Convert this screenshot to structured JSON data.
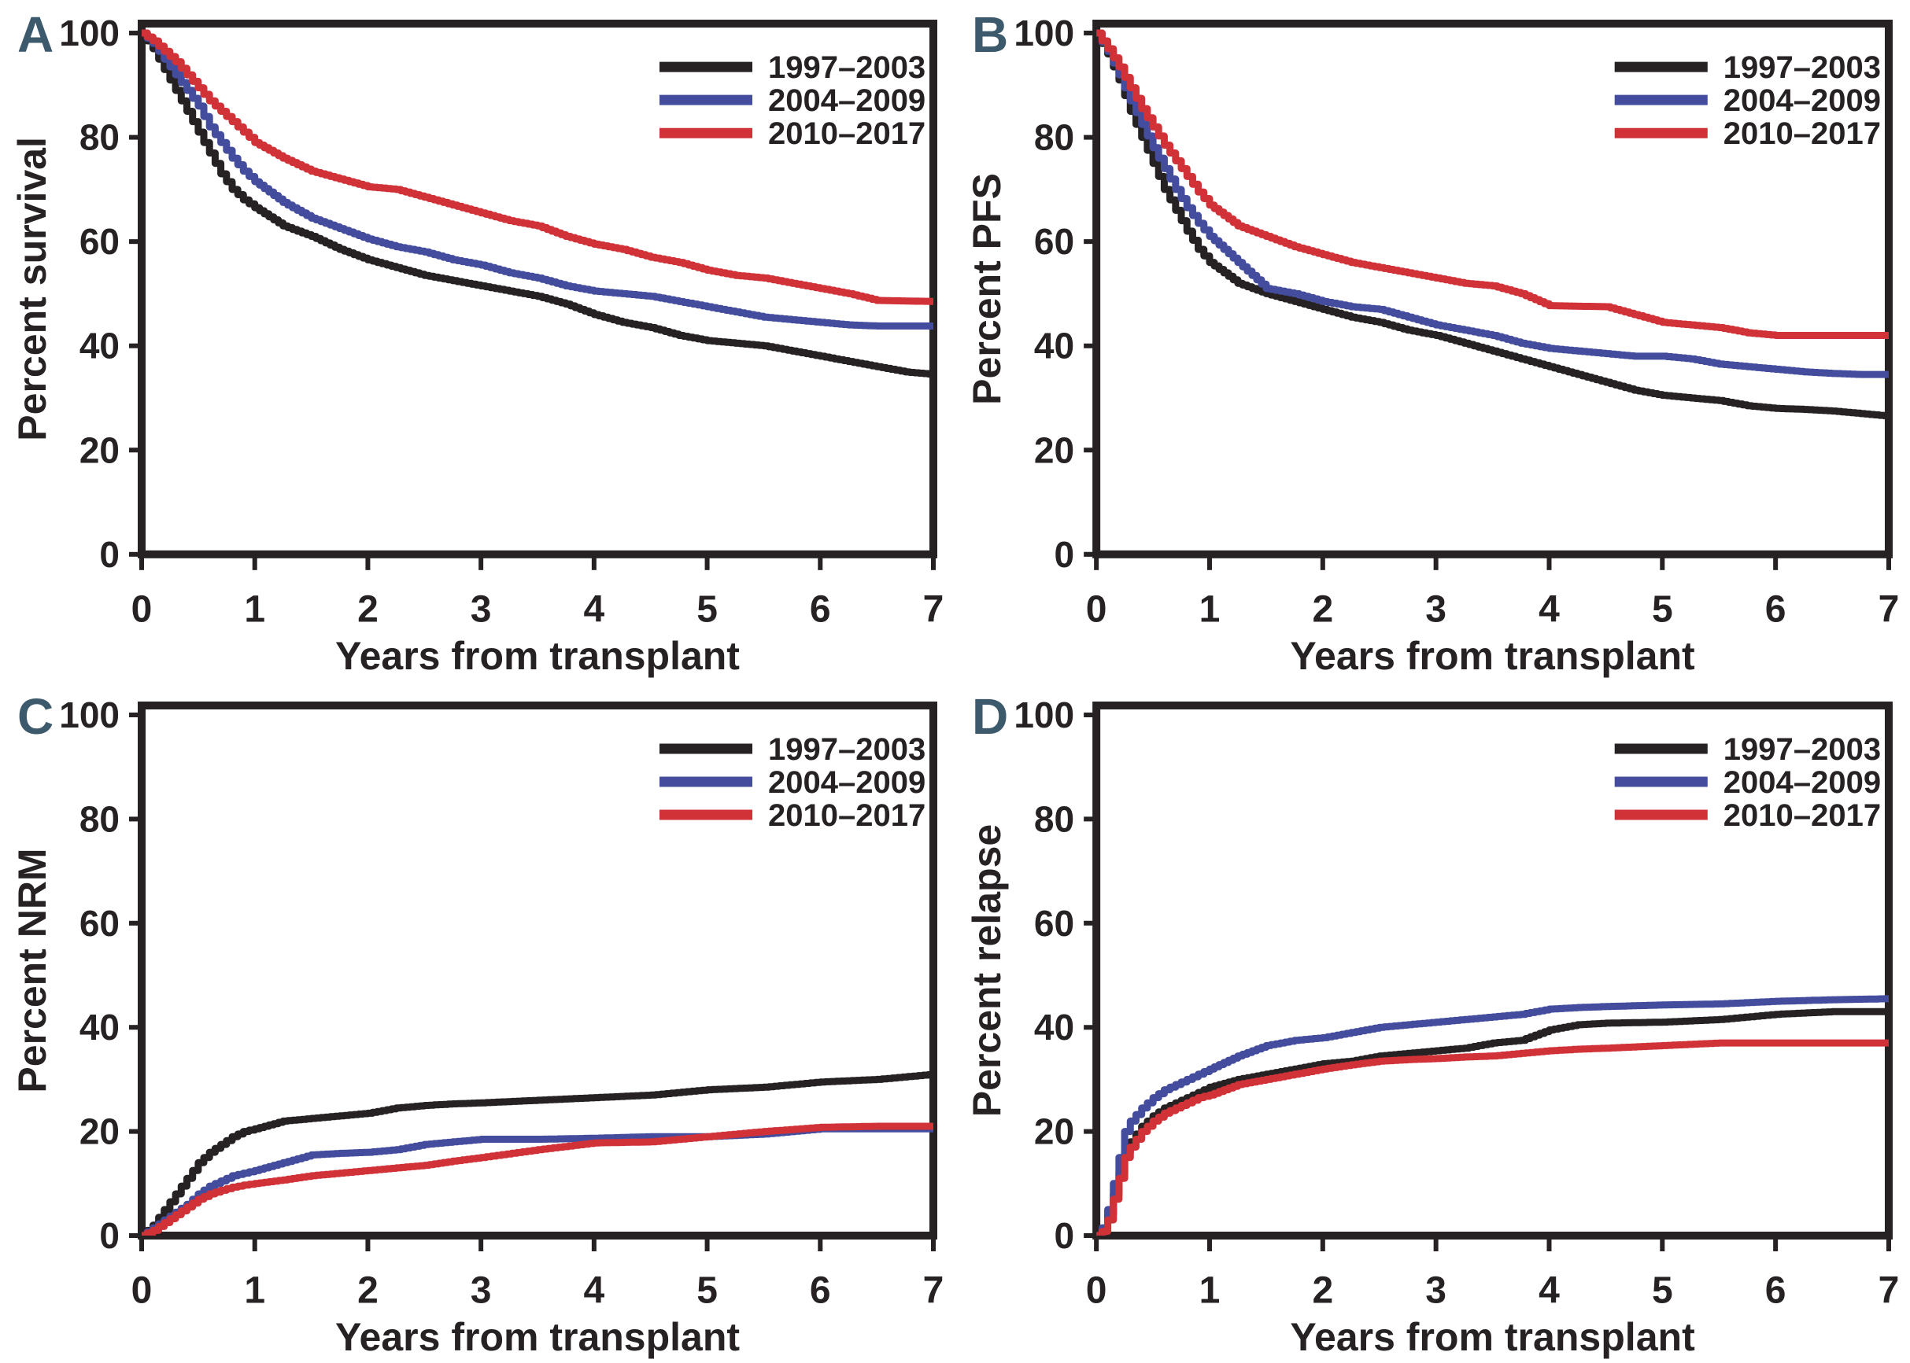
{
  "figure": {
    "background": "#ffffff",
    "axis_color": "#262223",
    "panel_letter_color": "#3d5a6c",
    "x_label": "Years from transplant",
    "x_ticks": [
      0,
      1,
      2,
      3,
      4,
      5,
      6,
      7
    ],
    "y_ticks": [
      0,
      20,
      40,
      60,
      80,
      100
    ],
    "xlim": [
      0,
      7
    ],
    "ylim": [
      0,
      100
    ],
    "grid": "off",
    "legend_position": "top-right",
    "legend_labels": [
      "1997–2003",
      "2004–2009",
      "2010–2017"
    ],
    "series_colors": {
      "black": "#262223",
      "blue": "#434c9d",
      "red": "#d03238"
    }
  },
  "chart_data": [
    {
      "panel": "A",
      "type": "line",
      "title": "",
      "ylabel": "Percent survival",
      "xlabel": "Years from transplant",
      "xlim": [
        0,
        7
      ],
      "ylim": [
        0,
        100
      ],
      "legend_position": "top-right",
      "x": [
        0,
        0.1,
        0.2,
        0.3,
        0.4,
        0.5,
        0.6,
        0.7,
        0.8,
        0.9,
        1,
        1.25,
        1.5,
        1.75,
        2,
        2.25,
        2.5,
        2.75,
        3,
        3.25,
        3.5,
        3.75,
        4,
        4.25,
        4.5,
        4.75,
        5,
        5.25,
        5.5,
        5.75,
        6,
        6.25,
        6.5,
        6.75,
        7
      ],
      "series": [
        {
          "name": "1997–2003",
          "color": "#262223",
          "y": [
            100,
            97,
            93,
            89,
            85,
            81,
            77,
            73,
            70,
            68,
            66.5,
            63,
            61,
            58.5,
            56.5,
            55,
            53.5,
            52.5,
            51.5,
            50.5,
            49.5,
            48,
            46,
            44.5,
            43.5,
            42,
            41,
            40.5,
            40,
            39,
            38,
            37,
            36,
            35,
            34.5
          ]
        },
        {
          "name": "2004–2009",
          "color": "#434c9d",
          "y": [
            100,
            98,
            95,
            92,
            89,
            86,
            82,
            79,
            76,
            73.5,
            71.5,
            67.5,
            64.5,
            62.5,
            60.5,
            59,
            58,
            56.5,
            55.5,
            54,
            53,
            51.5,
            50.5,
            50,
            49.5,
            48.5,
            47.5,
            46.5,
            45.5,
            45,
            44.5,
            44,
            43.8,
            43.8,
            43.8
          ]
        },
        {
          "name": "2010–2017",
          "color": "#d03238",
          "y": [
            100,
            98.5,
            96.5,
            94.5,
            92,
            89.5,
            87,
            85,
            83,
            81,
            79,
            76,
            73.5,
            72,
            70.5,
            70,
            68.5,
            67,
            65.5,
            64,
            63,
            61,
            59.5,
            58.5,
            57,
            56,
            54.5,
            53.5,
            53,
            52,
            51,
            50,
            48.7,
            48.6,
            48.5
          ]
        }
      ]
    },
    {
      "panel": "B",
      "type": "line",
      "title": "",
      "ylabel": "Percent PFS",
      "xlabel": "Years from transplant",
      "xlim": [
        0,
        7
      ],
      "ylim": [
        0,
        100
      ],
      "legend_position": "top-right",
      "x": [
        0,
        0.1,
        0.2,
        0.3,
        0.4,
        0.5,
        0.6,
        0.7,
        0.8,
        0.9,
        1,
        1.25,
        1.5,
        1.75,
        2,
        2.25,
        2.5,
        2.75,
        3,
        3.25,
        3.5,
        3.75,
        4,
        4.25,
        4.5,
        4.75,
        5,
        5.25,
        5.5,
        5.75,
        6,
        6.25,
        6.5,
        6.75,
        7
      ],
      "series": [
        {
          "name": "1997–2003",
          "color": "#262223",
          "y": [
            100,
            96,
            91,
            85,
            80,
            75,
            70,
            66,
            62,
            58.5,
            56,
            52,
            50,
            48.5,
            47,
            45.5,
            44.5,
            43,
            42,
            40.5,
            39,
            37.5,
            36,
            34.5,
            33,
            31.5,
            30.5,
            30,
            29.5,
            28.5,
            28,
            27.8,
            27.5,
            27,
            26.5
          ]
        },
        {
          "name": "2004–2009",
          "color": "#434c9d",
          "y": [
            100,
            96.5,
            92,
            87,
            82.5,
            78,
            74,
            70,
            66.5,
            63.5,
            61,
            56,
            51,
            50,
            48.5,
            47.5,
            47,
            45.5,
            44,
            43,
            42,
            40.5,
            39.5,
            39,
            38.5,
            38,
            38,
            37.5,
            36.5,
            36,
            35.5,
            35,
            34.7,
            34.5,
            34.5
          ]
        },
        {
          "name": "2010–2017",
          "color": "#d03238",
          "y": [
            100,
            97,
            93.5,
            89.5,
            85.5,
            82,
            78.5,
            75.5,
            72.5,
            69.5,
            67,
            63,
            61,
            59,
            57.5,
            56,
            55,
            54,
            53,
            52,
            51.5,
            50,
            47.7,
            47.6,
            47.5,
            46,
            44.5,
            44,
            43.5,
            42.5,
            42,
            42,
            42,
            42,
            42
          ]
        }
      ]
    },
    {
      "panel": "C",
      "type": "line",
      "title": "",
      "ylabel": "Percent NRM",
      "xlabel": "Years from transplant",
      "xlim": [
        0,
        7
      ],
      "ylim": [
        0,
        100
      ],
      "legend_position": "top-right",
      "x": [
        0,
        0.1,
        0.2,
        0.3,
        0.4,
        0.5,
        0.6,
        0.7,
        0.8,
        0.9,
        1,
        1.25,
        1.5,
        1.75,
        2,
        2.25,
        2.5,
        2.75,
        3,
        3.5,
        4,
        4.5,
        5,
        5.5,
        6,
        6.5,
        7
      ],
      "series": [
        {
          "name": "1997–2003",
          "color": "#262223",
          "y": [
            0,
            2,
            5,
            8,
            11,
            14,
            16,
            17.5,
            19,
            20,
            20.5,
            22,
            22.5,
            23,
            23.5,
            24.5,
            25,
            25.3,
            25.5,
            26,
            26.5,
            27,
            28,
            28.5,
            29.5,
            30,
            31
          ]
        },
        {
          "name": "2004–2009",
          "color": "#434c9d",
          "y": [
            0,
            1.5,
            3,
            4.5,
            6,
            8,
            9.5,
            10.5,
            11.5,
            12,
            12.5,
            14,
            15.5,
            15.8,
            16,
            16.5,
            17.5,
            18,
            18.5,
            18.5,
            18.7,
            19,
            19,
            19.5,
            20.5,
            20.5,
            20.5
          ]
        },
        {
          "name": "2010–2017",
          "color": "#d03238",
          "y": [
            0,
            1,
            2.5,
            4,
            5.5,
            7,
            8,
            8.7,
            9.3,
            9.7,
            10,
            10.7,
            11.5,
            12,
            12.5,
            13,
            13.5,
            14.3,
            15,
            16.5,
            17.8,
            18,
            19,
            20,
            20.8,
            21,
            21
          ]
        }
      ]
    },
    {
      "panel": "D",
      "type": "line",
      "title": "",
      "ylabel": "Percent relapse",
      "xlabel": "Years from transplant",
      "xlim": [
        0,
        7
      ],
      "ylim": [
        0,
        100
      ],
      "legend_position": "top-right",
      "x": [
        0,
        0.05,
        0.1,
        0.15,
        0.2,
        0.25,
        0.3,
        0.4,
        0.5,
        0.6,
        0.7,
        0.8,
        0.9,
        1,
        1.25,
        1.5,
        1.75,
        2,
        2.25,
        2.5,
        2.75,
        3,
        3.25,
        3.5,
        3.75,
        4,
        4.25,
        4.5,
        5,
        5.5,
        6,
        6.5,
        7
      ],
      "series": [
        {
          "name": "1997–2003",
          "color": "#262223",
          "y": [
            0,
            1,
            4,
            8,
            12,
            16,
            18,
            21,
            23,
            24.5,
            25.5,
            26.5,
            27.5,
            28.5,
            30,
            31,
            32,
            33,
            33.5,
            34.5,
            35,
            35.5,
            36,
            37,
            37.5,
            39.5,
            40.5,
            40.8,
            41,
            41.5,
            42.5,
            43,
            43
          ]
        },
        {
          "name": "2004–2009",
          "color": "#434c9d",
          "y": [
            0,
            1.5,
            5,
            10,
            15,
            20,
            22,
            24.5,
            26.5,
            28,
            29,
            30,
            31,
            32,
            34.5,
            36.5,
            37.5,
            38,
            39,
            40,
            40.5,
            41,
            41.5,
            42,
            42.5,
            43.5,
            43.8,
            44,
            44.3,
            44.5,
            45,
            45.3,
            45.5
          ]
        },
        {
          "name": "2010–2017",
          "color": "#d03238",
          "y": [
            0,
            0.8,
            3,
            7,
            11,
            15,
            17,
            20,
            22,
            23.5,
            24.5,
            25.5,
            26.5,
            27,
            29,
            30,
            31,
            32,
            32.8,
            33.5,
            33.8,
            34,
            34.3,
            34.5,
            35,
            35.5,
            35.8,
            36,
            36.5,
            37,
            37,
            37,
            37
          ]
        }
      ]
    }
  ]
}
